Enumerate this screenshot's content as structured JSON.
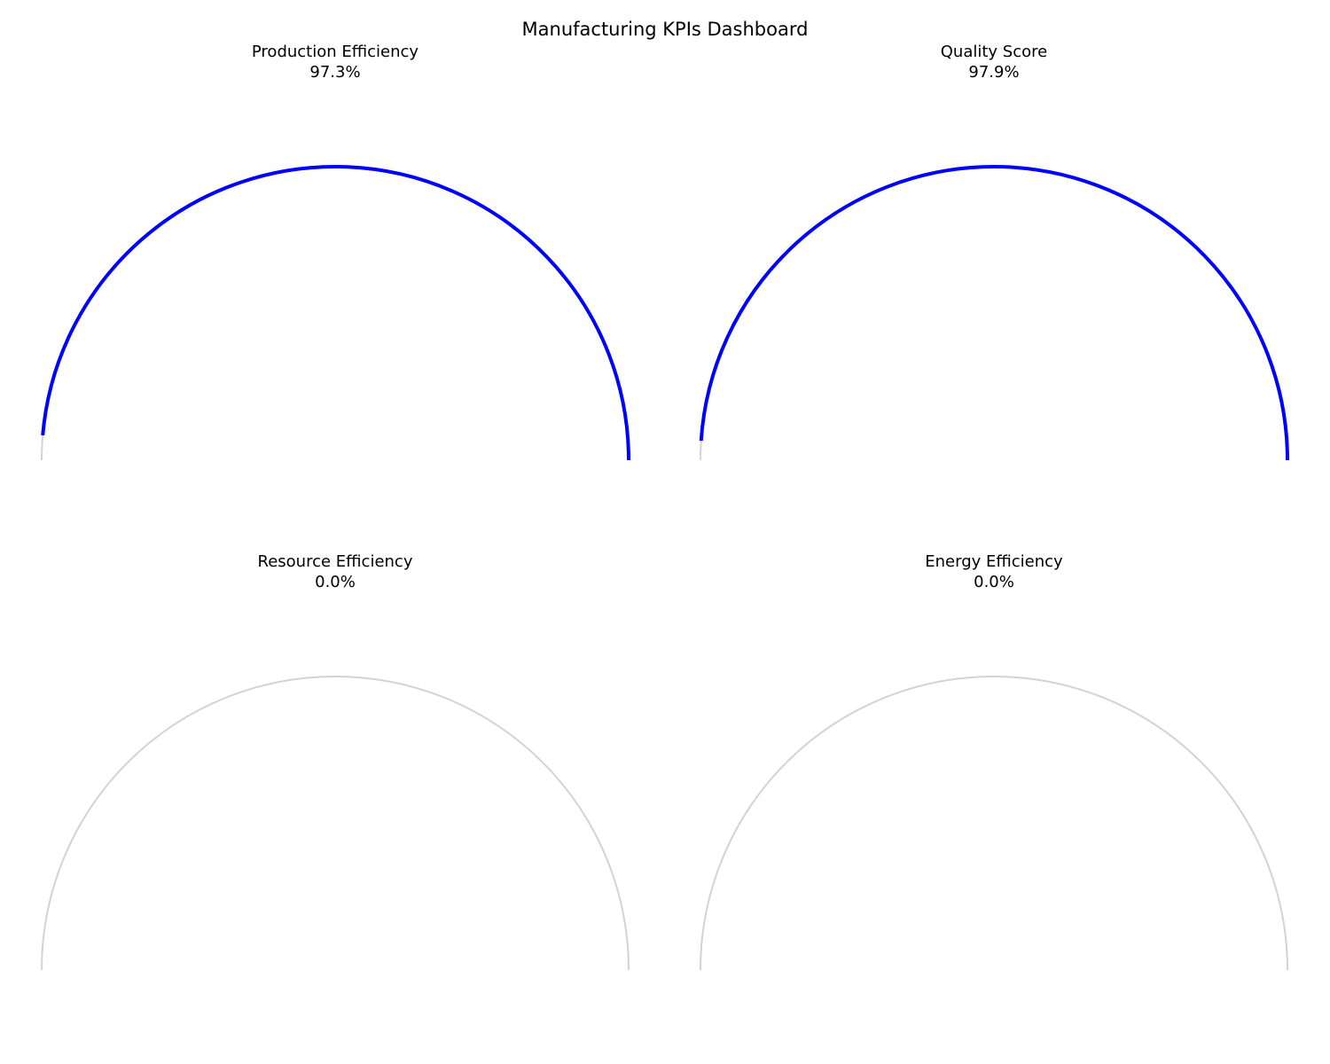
{
  "dashboard": {
    "title": "Manufacturing KPIs Dashboard"
  },
  "colors": {
    "track": "#d3d3d3",
    "fill": "#0000ff"
  },
  "chart_data": [
    {
      "type": "gauge",
      "title": "Production Efficiency",
      "value_label": "97.3%",
      "value": 97.3,
      "range": [
        0,
        100
      ]
    },
    {
      "type": "gauge",
      "title": "Quality Score",
      "value_label": "97.9%",
      "value": 97.9,
      "range": [
        0,
        100
      ]
    },
    {
      "type": "gauge",
      "title": "Resource Efficiency",
      "value_label": "0.0%",
      "value": 0.0,
      "range": [
        0,
        100
      ]
    },
    {
      "type": "gauge",
      "title": "Energy Efficiency",
      "value_label": "0.0%",
      "value": 0.0,
      "range": [
        0,
        100
      ]
    }
  ]
}
